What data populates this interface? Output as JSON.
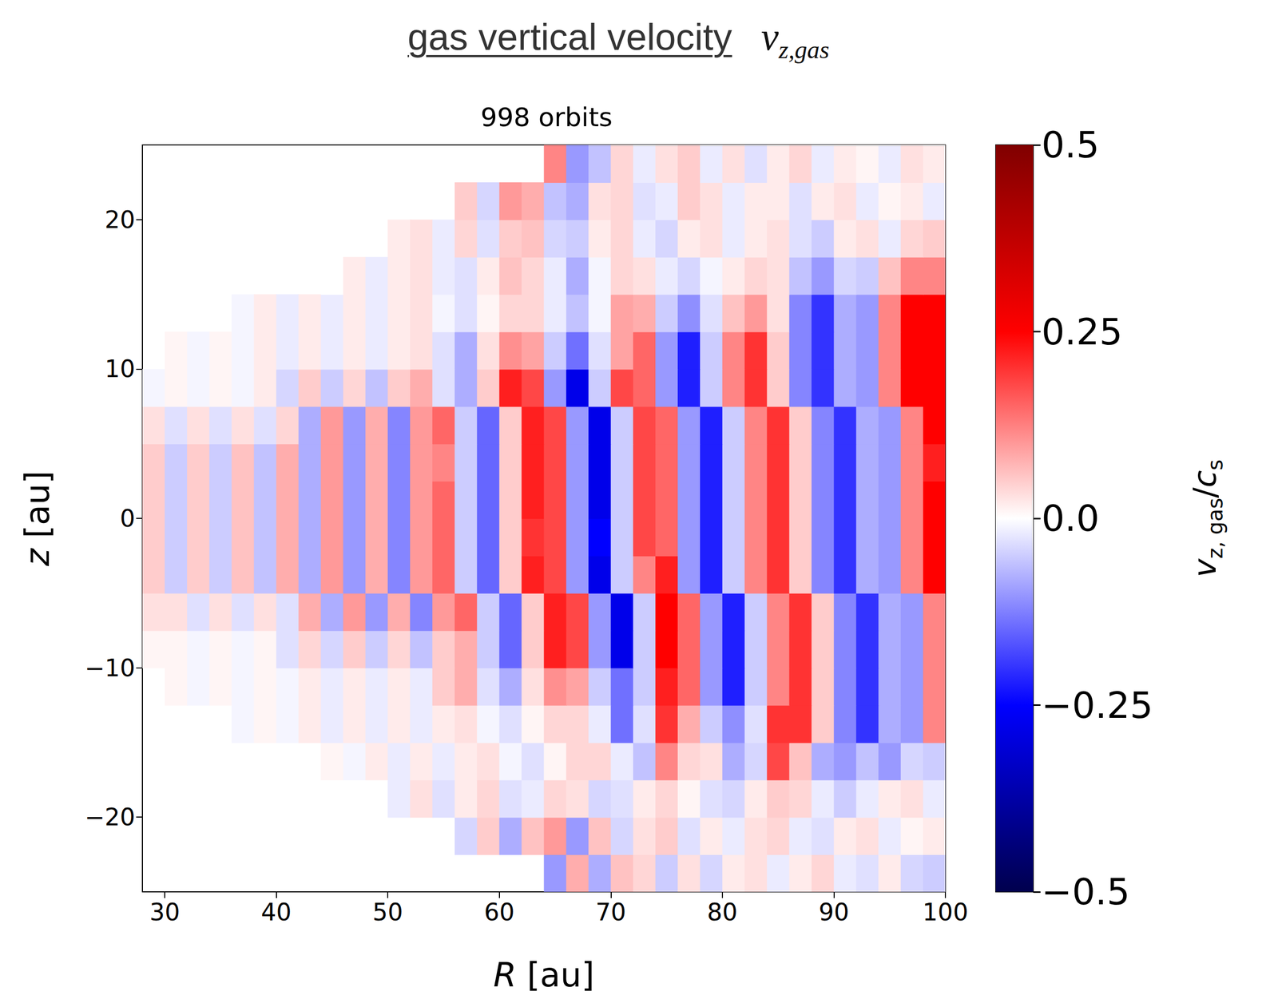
{
  "chart_data": {
    "type": "heatmap",
    "header": {
      "title": "gas vertical velocity",
      "symbol": [
        {
          "text": "v"
        },
        {
          "text": "z,gas",
          "sub": true
        }
      ]
    },
    "title": "998 orbits",
    "x_label": "R [au]",
    "y_label": "z [au]",
    "xlim": [
      28,
      100
    ],
    "ylim": [
      -25,
      25
    ],
    "xticks": [
      30,
      40,
      50,
      60,
      70,
      80,
      90,
      100
    ],
    "yticks": [
      {
        "value": -20,
        "label": "−20"
      },
      {
        "value": -10,
        "label": "−10"
      },
      0,
      10,
      20
    ],
    "grid": false,
    "heatmap": {
      "r": [
        29,
        31,
        33,
        35,
        37,
        39,
        41,
        43,
        45,
        47,
        49,
        51,
        53,
        55,
        57,
        59,
        61,
        63,
        65,
        67,
        69,
        71,
        73,
        75,
        77,
        79,
        81,
        83,
        85,
        87,
        89,
        91,
        93,
        95,
        97,
        99
      ],
      "z": [
        -23.75,
        -21.25,
        -18.75,
        -16.25,
        -13.75,
        -11.25,
        -8.75,
        -6.25,
        -3.75,
        -1.25,
        1.25,
        3.75,
        6.25,
        8.75,
        11.25,
        13.75,
        16.25,
        18.75,
        21.25,
        23.75
      ],
      "values": [
        [
          null,
          null,
          null,
          null,
          null,
          null,
          null,
          null,
          null,
          null,
          null,
          null,
          null,
          null,
          null,
          null,
          null,
          null,
          -0.1,
          0.08,
          -0.08,
          0.06,
          0.04,
          -0.05,
          0.03,
          -0.04,
          0.02,
          0.03,
          -0.02,
          0.02,
          0.04,
          -0.02,
          -0.03,
          0.02,
          -0.04,
          -0.05
        ],
        [
          null,
          null,
          null,
          null,
          null,
          null,
          null,
          null,
          null,
          null,
          null,
          null,
          null,
          null,
          -0.04,
          0.05,
          -0.08,
          0.06,
          0.1,
          -0.1,
          0.06,
          -0.04,
          0.03,
          0.05,
          -0.03,
          0.02,
          -0.02,
          0.03,
          0.04,
          -0.02,
          -0.03,
          0.02,
          0.03,
          -0.02,
          0.01,
          0.02
        ],
        [
          null,
          null,
          null,
          null,
          null,
          null,
          null,
          null,
          null,
          null,
          null,
          -0.02,
          0.03,
          -0.03,
          0.02,
          0.04,
          -0.03,
          -0.02,
          0.04,
          0.03,
          -0.04,
          -0.03,
          0.02,
          0.04,
          0.01,
          -0.03,
          -0.04,
          0.02,
          0.05,
          0.04,
          -0.02,
          -0.05,
          -0.02,
          0.02,
          0.03,
          -0.02
        ],
        [
          null,
          null,
          null,
          null,
          null,
          null,
          null,
          null,
          0.01,
          -0.01,
          0.02,
          -0.02,
          0.02,
          -0.02,
          0.02,
          0.03,
          -0.01,
          -0.03,
          0.01,
          0.04,
          0.04,
          -0.02,
          -0.06,
          0.12,
          0.04,
          0.03,
          -0.08,
          -0.04,
          0.18,
          0.06,
          -0.08,
          -0.1,
          -0.06,
          -0.1,
          -0.04,
          -0.05
        ],
        [
          null,
          null,
          null,
          null,
          -0.01,
          0.01,
          -0.01,
          0.02,
          -0.02,
          0.02,
          -0.02,
          0.02,
          -0.02,
          0.02,
          0.03,
          -0.01,
          -0.03,
          0.01,
          0.04,
          0.04,
          -0.02,
          -0.14,
          -0.03,
          0.2,
          0.08,
          -0.05,
          -0.11,
          -0.03,
          0.2,
          0.2,
          0.05,
          -0.12,
          -0.2,
          -0.08,
          -0.1,
          0.12
        ],
        [
          null,
          0.01,
          -0.01,
          0.01,
          -0.01,
          0.01,
          -0.01,
          0.02,
          -0.02,
          0.02,
          -0.02,
          0.02,
          -0.02,
          0.05,
          0.08,
          -0.03,
          -0.08,
          0.03,
          0.11,
          0.09,
          -0.05,
          -0.14,
          -0.05,
          0.22,
          0.15,
          -0.1,
          -0.22,
          -0.05,
          0.12,
          0.2,
          0.05,
          -0.12,
          -0.2,
          -0.08,
          -0.1,
          0.12
        ],
        [
          0.01,
          0.01,
          -0.01,
          0.01,
          -0.01,
          0.01,
          -0.03,
          0.04,
          -0.04,
          0.05,
          -0.05,
          0.04,
          -0.06,
          0.05,
          0.08,
          -0.05,
          -0.15,
          0.05,
          0.22,
          0.18,
          -0.1,
          -0.28,
          -0.05,
          0.25,
          0.15,
          -0.1,
          -0.22,
          -0.05,
          0.12,
          0.2,
          0.05,
          -0.12,
          -0.2,
          -0.08,
          -0.1,
          0.12
        ],
        [
          0.03,
          0.03,
          -0.03,
          0.03,
          -0.03,
          0.03,
          -0.03,
          0.08,
          -0.08,
          0.1,
          -0.1,
          0.08,
          -0.12,
          0.1,
          0.15,
          -0.05,
          -0.15,
          0.05,
          0.22,
          0.18,
          -0.1,
          -0.28,
          -0.05,
          0.25,
          0.15,
          -0.1,
          -0.22,
          -0.05,
          0.12,
          0.2,
          0.05,
          -0.12,
          -0.2,
          -0.08,
          -0.1,
          0.12
        ],
        [
          0.05,
          -0.05,
          0.05,
          -0.05,
          0.06,
          -0.06,
          0.08,
          -0.08,
          0.1,
          -0.1,
          0.08,
          -0.12,
          0.1,
          0.15,
          -0.05,
          -0.15,
          0.05,
          0.22,
          0.18,
          -0.1,
          -0.28,
          -0.05,
          0.12,
          0.22,
          -0.1,
          -0.22,
          -0.05,
          0.12,
          0.2,
          0.05,
          -0.12,
          -0.2,
          -0.08,
          -0.1,
          0.12,
          0.25
        ],
        [
          0.05,
          -0.05,
          0.05,
          -0.05,
          0.06,
          -0.06,
          0.08,
          -0.08,
          0.1,
          -0.1,
          0.08,
          -0.12,
          0.1,
          0.15,
          -0.05,
          -0.15,
          0.05,
          0.2,
          0.18,
          -0.1,
          -0.25,
          -0.05,
          0.18,
          0.15,
          -0.1,
          -0.22,
          -0.05,
          0.12,
          0.2,
          0.05,
          -0.12,
          -0.2,
          -0.08,
          -0.1,
          0.12,
          0.25
        ],
        [
          0.05,
          -0.05,
          0.05,
          -0.05,
          0.06,
          -0.06,
          0.08,
          -0.08,
          0.1,
          -0.1,
          0.08,
          -0.12,
          0.1,
          0.15,
          -0.05,
          -0.15,
          0.05,
          0.22,
          0.18,
          -0.1,
          -0.28,
          -0.05,
          0.18,
          0.15,
          -0.1,
          -0.22,
          -0.05,
          0.12,
          0.2,
          0.05,
          -0.12,
          -0.2,
          -0.08,
          -0.1,
          0.12,
          0.25
        ],
        [
          0.05,
          -0.05,
          0.05,
          -0.05,
          0.06,
          -0.06,
          0.08,
          -0.08,
          0.1,
          -0.1,
          0.08,
          -0.12,
          0.1,
          0.12,
          -0.05,
          -0.15,
          0.05,
          0.22,
          0.18,
          -0.1,
          -0.28,
          -0.05,
          0.18,
          0.15,
          -0.1,
          -0.22,
          -0.05,
          0.12,
          0.2,
          0.05,
          -0.12,
          -0.2,
          -0.08,
          -0.1,
          0.12,
          0.22
        ],
        [
          0.03,
          -0.03,
          0.03,
          -0.03,
          0.03,
          -0.03,
          0.04,
          -0.08,
          0.1,
          -0.1,
          0.08,
          -0.12,
          0.1,
          0.15,
          -0.05,
          -0.15,
          0.05,
          0.22,
          0.18,
          -0.1,
          -0.28,
          -0.05,
          0.18,
          0.15,
          -0.1,
          -0.22,
          -0.05,
          0.12,
          0.2,
          0.05,
          -0.12,
          -0.2,
          -0.08,
          -0.1,
          0.12,
          0.25
        ],
        [
          -0.01,
          0.01,
          -0.01,
          0.01,
          -0.01,
          0.02,
          -0.04,
          0.05,
          -0.05,
          0.04,
          -0.06,
          0.05,
          0.08,
          -0.03,
          -0.08,
          0.05,
          0.22,
          0.18,
          -0.1,
          -0.28,
          -0.05,
          0.18,
          0.15,
          -0.1,
          -0.22,
          -0.05,
          0.12,
          0.2,
          0.05,
          -0.12,
          -0.2,
          -0.08,
          -0.1,
          0.12,
          0.25,
          0.25
        ],
        [
          null,
          0.01,
          -0.01,
          0.01,
          -0.01,
          0.02,
          -0.02,
          0.02,
          -0.02,
          0.02,
          -0.02,
          0.02,
          0.03,
          -0.03,
          -0.08,
          0.03,
          0.11,
          0.09,
          -0.05,
          -0.14,
          -0.03,
          0.09,
          0.15,
          -0.1,
          -0.22,
          -0.05,
          0.12,
          0.2,
          0.05,
          -0.12,
          -0.2,
          -0.08,
          -0.1,
          0.12,
          0.25,
          0.25
        ],
        [
          null,
          null,
          null,
          null,
          -0.01,
          0.02,
          -0.02,
          0.02,
          -0.02,
          0.02,
          -0.02,
          0.02,
          0.03,
          -0.01,
          -0.03,
          0.01,
          0.04,
          0.04,
          -0.02,
          -0.06,
          -0.01,
          0.09,
          0.08,
          -0.05,
          -0.11,
          -0.03,
          0.06,
          0.1,
          0.03,
          -0.12,
          -0.2,
          -0.08,
          -0.1,
          0.12,
          0.25,
          0.25
        ],
        [
          null,
          null,
          null,
          null,
          null,
          null,
          null,
          null,
          0,
          0.02,
          -0.02,
          0.02,
          0.03,
          -0.02,
          -0.03,
          0.02,
          0.06,
          0.04,
          -0.02,
          -0.08,
          -0.01,
          0.04,
          0.03,
          -0.02,
          -0.04,
          -0.01,
          0.02,
          0.04,
          0.03,
          -0.06,
          -0.1,
          -0.04,
          -0.05,
          0.06,
          0.12,
          0.12
        ],
        [
          null,
          null,
          null,
          null,
          null,
          null,
          null,
          null,
          null,
          null,
          null,
          0.02,
          0.03,
          -0.02,
          0.04,
          -0.03,
          0.05,
          0.06,
          -0.04,
          -0.05,
          0.02,
          0.04,
          -0.02,
          -0.04,
          0.02,
          0.03,
          -0.02,
          0.02,
          0.03,
          -0.03,
          -0.05,
          0.02,
          0.03,
          -0.02,
          0.04,
          0.05
        ],
        [
          null,
          null,
          null,
          null,
          null,
          null,
          null,
          null,
          null,
          null,
          null,
          null,
          null,
          null,
          0.05,
          -0.04,
          0.1,
          0.08,
          -0.06,
          -0.08,
          0.03,
          0.04,
          -0.03,
          -0.02,
          0.05,
          0.03,
          -0.02,
          0.02,
          0.02,
          -0.03,
          0.02,
          0.03,
          -0.02,
          0.01,
          0.02,
          -0.02
        ],
        [
          null,
          null,
          null,
          null,
          null,
          null,
          null,
          null,
          null,
          null,
          null,
          null,
          null,
          null,
          null,
          null,
          null,
          null,
          0.12,
          -0.1,
          -0.06,
          0.04,
          -0.02,
          0.03,
          0.05,
          -0.02,
          0.03,
          -0.03,
          0.02,
          0.04,
          -0.02,
          0.02,
          0.01,
          -0.02,
          0.03,
          0.02
        ]
      ]
    },
    "colorbar": {
      "label": [
        {
          "text": "v"
        },
        {
          "text": "z, gas",
          "sub": true
        },
        {
          "text": "/c"
        },
        {
          "text": "s",
          "sub": true
        }
      ],
      "lim": [
        -0.5,
        0.5
      ],
      "ticks": [
        {
          "value": -0.5,
          "label": "−0.5"
        },
        {
          "value": -0.25,
          "label": "−0.25"
        },
        {
          "value": 0,
          "label": "0.0"
        },
        0.25,
        0.5
      ]
    }
  }
}
